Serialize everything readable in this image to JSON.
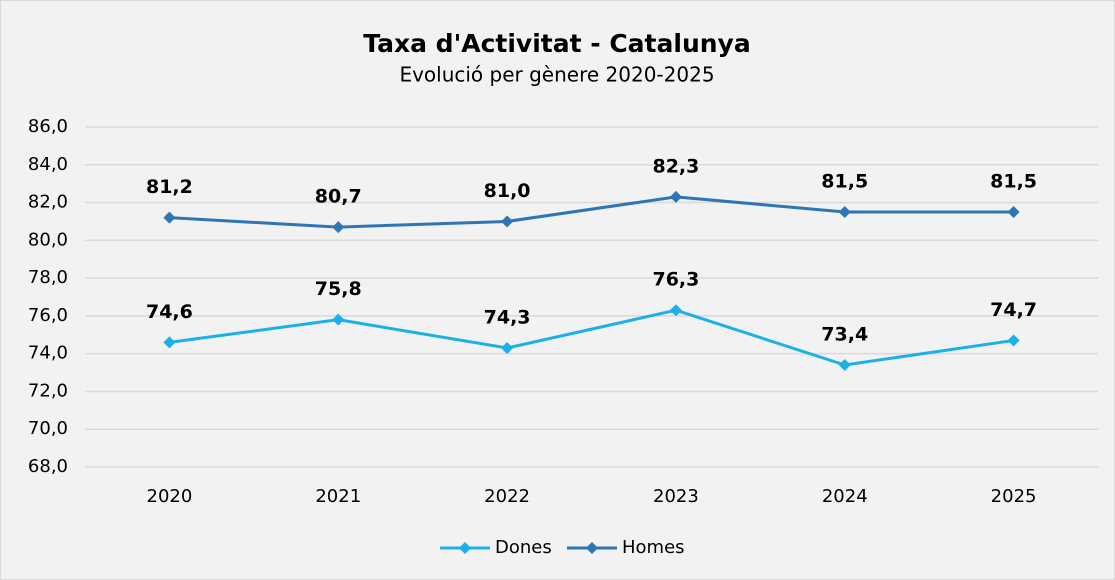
{
  "chart_data": {
    "type": "line",
    "title": "Taxa d'Activitat - Catalunya",
    "subtitle": "Evolució per gènere 2020-2025",
    "categories": [
      "2020",
      "2021",
      "2022",
      "2023",
      "2024",
      "2025"
    ],
    "series": [
      {
        "name": "Dones",
        "color": "#1cb0e8",
        "values": [
          74.6,
          75.8,
          74.3,
          76.3,
          73.4,
          74.7
        ],
        "value_labels": [
          "74,6",
          "75,8",
          "74,3",
          "76,3",
          "73,4",
          "74,7"
        ]
      },
      {
        "name": "Homes",
        "color": "#2e75b6",
        "values": [
          81.2,
          80.7,
          81.0,
          82.3,
          81.5,
          81.5
        ],
        "value_labels": [
          "81,2",
          "80,7",
          "81,0",
          "82,3",
          "81,5",
          "81,5"
        ]
      }
    ],
    "ylim": [
      68,
      86
    ],
    "yticks": [
      {
        "value": 68,
        "label": "68,0"
      },
      {
        "value": 70,
        "label": "70,0"
      },
      {
        "value": 72,
        "label": "72,0"
      },
      {
        "value": 74,
        "label": "74,0"
      },
      {
        "value": 76,
        "label": "76,0"
      },
      {
        "value": 78,
        "label": "78,0"
      },
      {
        "value": 80,
        "label": "80,0"
      },
      {
        "value": 82,
        "label": "82,0"
      },
      {
        "value": 84,
        "label": "84,0"
      },
      {
        "value": 86,
        "label": "86,0"
      }
    ],
    "grid": true,
    "legend": "bottom"
  }
}
